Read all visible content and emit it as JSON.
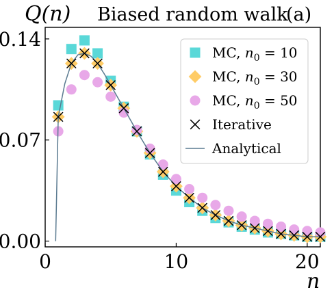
{
  "chart_data": {
    "type": "scatter",
    "title": "Biased random walk",
    "panel_label": "(a)",
    "ylabel": "Q(n)",
    "xlabel": "n",
    "xlim": [
      0,
      21
    ],
    "ylim": [
      -0.004,
      0.148
    ],
    "x_ticks": [
      0,
      10,
      20
    ],
    "x_tick_labels": [
      "0",
      "10",
      "20"
    ],
    "y_ticks": [
      0.0,
      0.07,
      0.14
    ],
    "y_tick_labels": [
      "0.00",
      "0.07",
      "0.14"
    ],
    "grid": false,
    "legend_position": "top-right",
    "x": [
      1,
      2,
      3,
      4,
      5,
      6,
      7,
      8,
      9,
      10,
      11,
      12,
      13,
      14,
      15,
      16,
      17,
      18,
      19,
      20,
      21
    ],
    "series": [
      {
        "name": "MC, n0 = 10",
        "label_main": "MC, ",
        "label_var": "n",
        "label_sub": "0",
        "label_rest": " = 10",
        "marker": "square",
        "color": "#5ad8d8",
        "values": [
          0.094,
          0.133,
          0.139,
          0.13,
          0.111,
          0.093,
          0.076,
          0.06,
          0.046,
          0.035,
          0.027,
          0.021,
          0.016,
          0.013,
          0.01,
          0.008,
          0.006,
          0.005,
          0.004,
          0.003,
          0.003
        ]
      },
      {
        "name": "MC, n0 = 30",
        "label_main": "MC, ",
        "label_var": "n",
        "label_sub": "0",
        "label_rest": " = 30",
        "marker": "diamond",
        "color": "#ffcc66",
        "values": [
          0.086,
          0.123,
          0.13,
          0.123,
          0.108,
          0.092,
          0.076,
          0.061,
          0.048,
          0.038,
          0.03,
          0.023,
          0.018,
          0.014,
          0.011,
          0.009,
          0.007,
          0.005,
          0.004,
          0.003,
          0.003
        ]
      },
      {
        "name": "MC, n0 = 50",
        "label_main": "MC, ",
        "label_var": "n",
        "label_sub": "0",
        "label_rest": " = 50",
        "marker": "circle",
        "color": "#e8a8e8",
        "values": [
          0.076,
          0.105,
          0.115,
          0.11,
          0.1,
          0.089,
          0.077,
          0.064,
          0.053,
          0.043,
          0.036,
          0.03,
          0.025,
          0.021,
          0.017,
          0.014,
          0.012,
          0.01,
          0.008,
          0.007,
          0.006
        ]
      },
      {
        "name": "Iterative",
        "label_main": "Iterative",
        "marker": "x",
        "color": "#000000",
        "values": [
          0.086,
          0.123,
          0.13,
          0.123,
          0.108,
          0.092,
          0.076,
          0.061,
          0.048,
          0.038,
          0.03,
          0.023,
          0.018,
          0.014,
          0.011,
          0.009,
          0.007,
          0.005,
          0.004,
          0.003,
          0.003
        ]
      },
      {
        "name": "Analytical",
        "label_main": "Analytical",
        "marker": "line",
        "color": "#5a7a90",
        "x": [
          0.8,
          1,
          1.5,
          2,
          2.5,
          3,
          3.5,
          4,
          4.5,
          5,
          5.5,
          6,
          7,
          8,
          9,
          10,
          11,
          12,
          13,
          14,
          15,
          16,
          17,
          18,
          19,
          20,
          21
        ],
        "values": [
          0.0,
          0.086,
          0.109,
          0.123,
          0.129,
          0.13,
          0.128,
          0.123,
          0.116,
          0.108,
          0.1,
          0.092,
          0.076,
          0.061,
          0.048,
          0.038,
          0.03,
          0.023,
          0.018,
          0.014,
          0.011,
          0.009,
          0.007,
          0.005,
          0.004,
          0.003,
          0.003
        ]
      }
    ]
  }
}
